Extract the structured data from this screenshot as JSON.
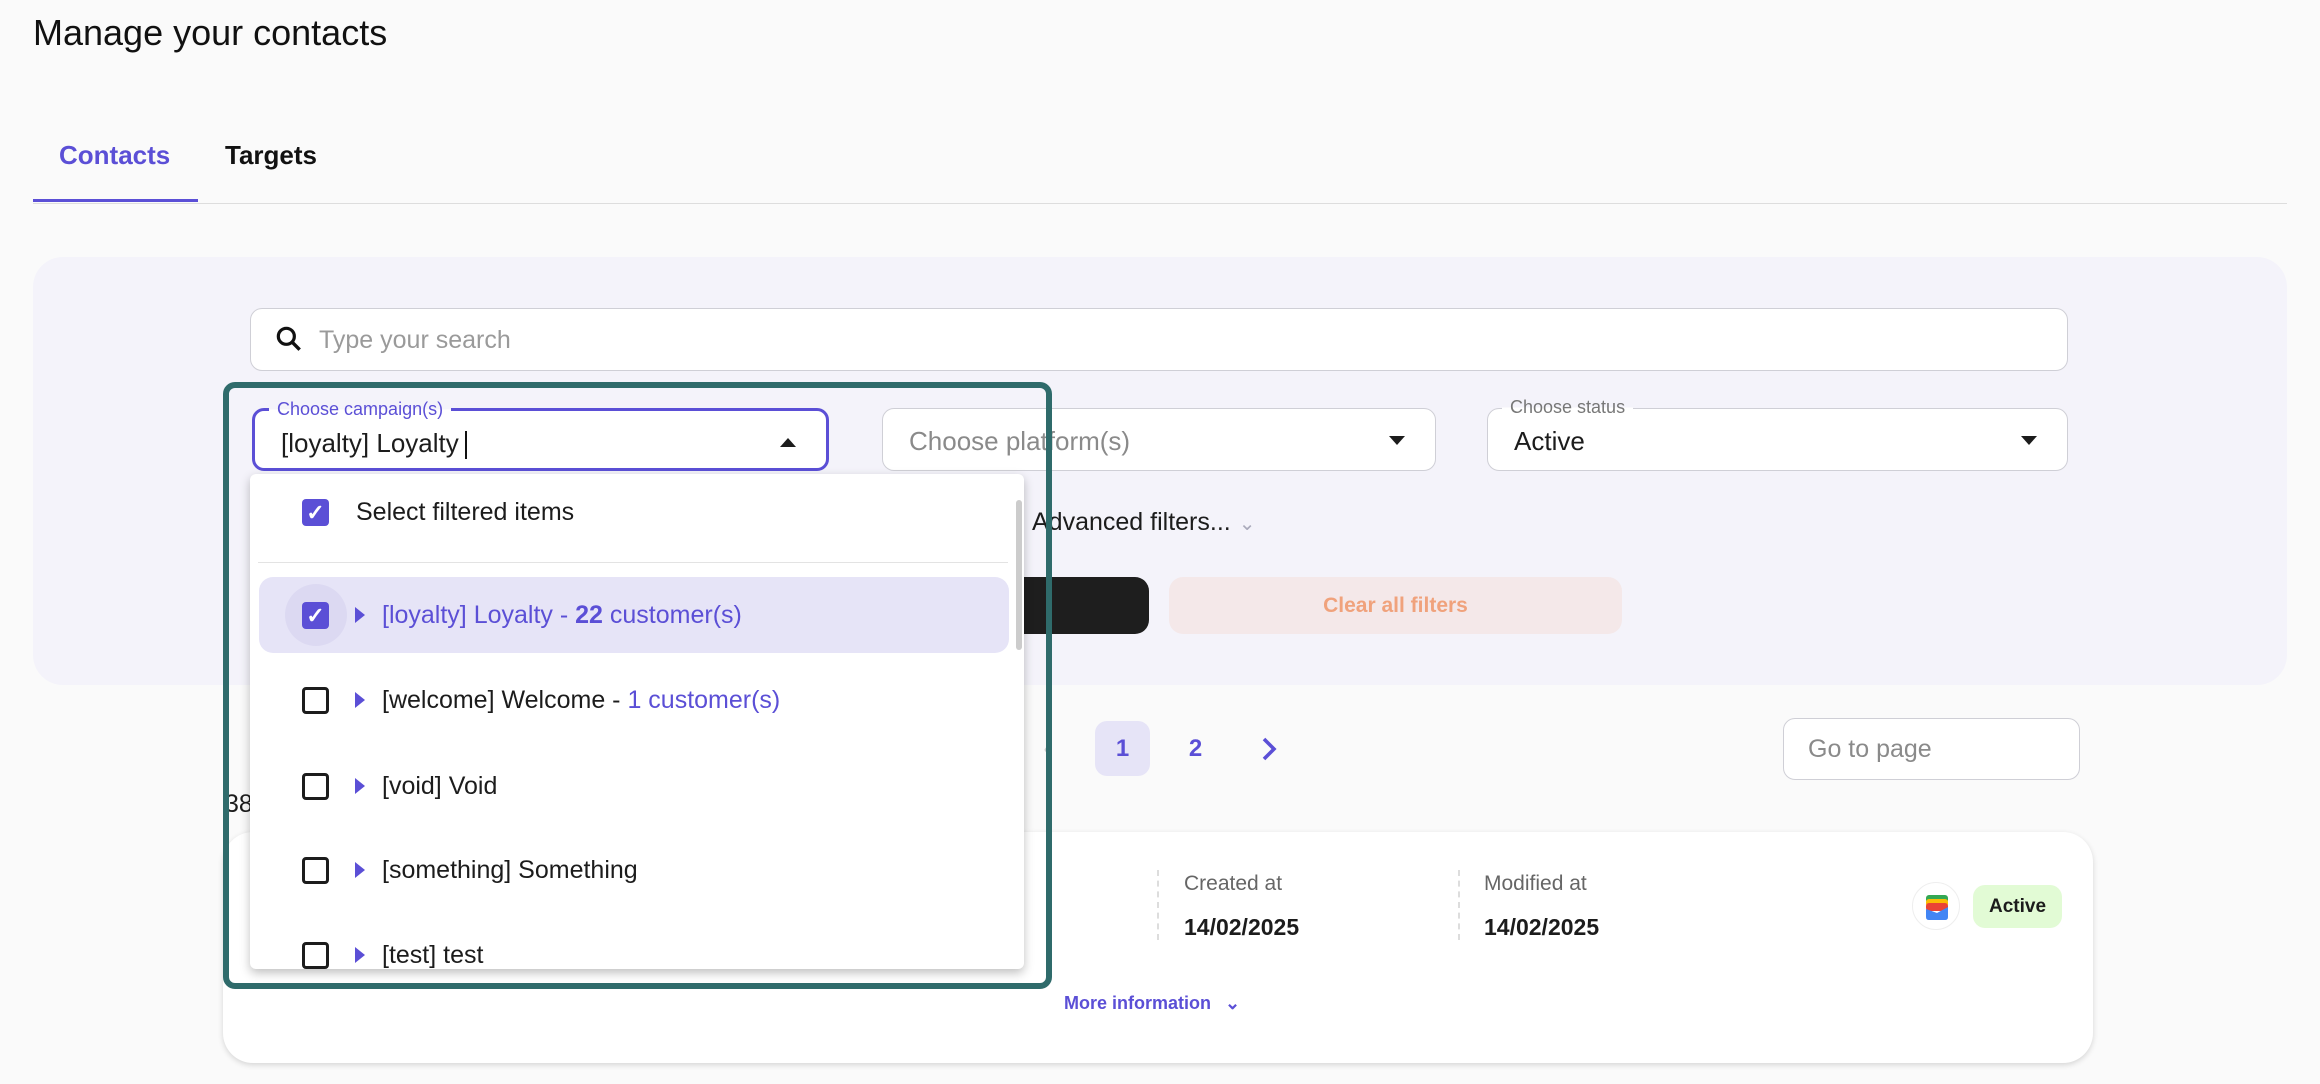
{
  "page": {
    "title": "Manage your contacts"
  },
  "tabs": [
    {
      "label": "Contacts",
      "active": true
    },
    {
      "label": "Targets",
      "active": false
    }
  ],
  "filters": {
    "search_placeholder": "Type your search",
    "campaign": {
      "label": "Choose campaign(s)",
      "value": "[loyalty] Loyalty"
    },
    "platform": {
      "placeholder": "Choose platform(s)"
    },
    "status": {
      "label": "Choose status",
      "value": "Active"
    },
    "advanced_label": "Advanced filters...",
    "clear_label": "Clear all filters"
  },
  "dropdown": {
    "select_all": {
      "label": "Select filtered items",
      "checked": true
    },
    "items": [
      {
        "label": "[loyalty] Loyalty - ",
        "count": "22",
        "count_suffix": " customer(s)",
        "checked": true
      },
      {
        "label": "[welcome] Welcome - ",
        "count": "1",
        "count_suffix": " customer(s)",
        "checked": false
      },
      {
        "label": "[void] Void",
        "checked": false
      },
      {
        "label": "[something] Something",
        "checked": false
      },
      {
        "label": "[test] test",
        "checked": false
      }
    ]
  },
  "pagination": {
    "pages": [
      "1",
      "2"
    ],
    "current": "1",
    "goto_placeholder": "Go to page"
  },
  "results": {
    "count_partial": "38"
  },
  "card": {
    "created_label": "Created at",
    "created_value": "14/02/2025",
    "modified_label": "Modified at",
    "modified_value": "14/02/2025",
    "status": "Active",
    "more_label": "More information",
    "platform_icon": "google-wallet-icon"
  },
  "colors": {
    "accent": "#5b4fd6",
    "highlight": "#2f6b6b",
    "active_badge": "#e2fbd5",
    "clear_text": "#f0a27c"
  }
}
